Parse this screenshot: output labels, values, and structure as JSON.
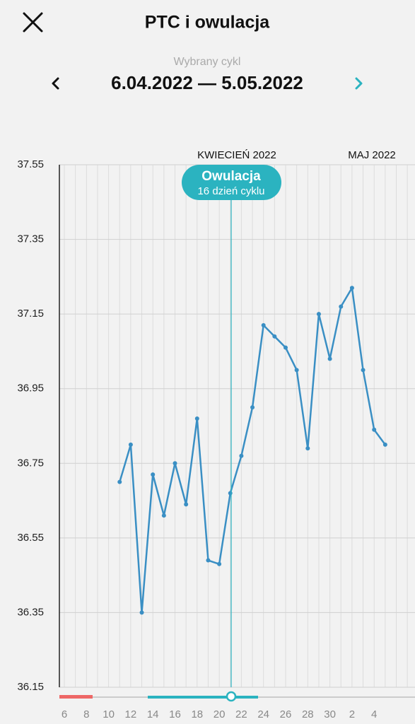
{
  "header": {
    "title": "PTC i owulacja",
    "cycle_label": "Wybrany cykl",
    "cycle_range": "6.04.2022 — 5.05.2022"
  },
  "chart_data": {
    "type": "line",
    "categories": [
      "6",
      null,
      "8",
      null,
      "10",
      null,
      "12",
      null,
      "14",
      null,
      "16",
      null,
      "18",
      null,
      "20",
      null,
      "22",
      null,
      "24",
      null,
      "26",
      null,
      "28",
      null,
      "30",
      null,
      "2",
      null,
      "4",
      null,
      null,
      null
    ],
    "series": [
      {
        "color": "#3a8fc4",
        "values": [
          null,
          null,
          null,
          null,
          null,
          36.7,
          36.8,
          36.35,
          36.72,
          36.61,
          36.75,
          36.64,
          36.87,
          36.49,
          36.48,
          36.67,
          36.77,
          36.9,
          37.12,
          37.09,
          37.06,
          37.0,
          36.79,
          37.15,
          37.03,
          37.17,
          37.22,
          37.0,
          36.84,
          36.8,
          null,
          null
        ]
      }
    ],
    "ylim": [
      36.15,
      37.55
    ],
    "yticks": [
      36.15,
      36.35,
      36.55,
      36.75,
      36.95,
      37.15,
      37.35,
      37.55
    ],
    "grid": true,
    "annotations": {
      "months": [
        "KWIECIEŃ 2022",
        "MAJ 2022"
      ],
      "ovulation_title": "Owulacja",
      "ovulation_day": "16 dzień cyklu"
    }
  }
}
